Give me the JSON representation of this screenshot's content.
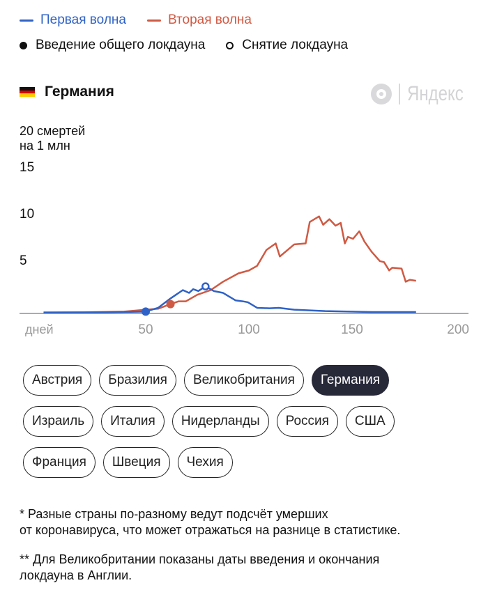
{
  "legend": {
    "first_wave": "Первая волна",
    "second_wave": "Вторая волна",
    "lockdown_start": "Введение общего локдауна",
    "lockdown_end": "Снятие локдауна"
  },
  "colors": {
    "first_wave": "#2f62c6",
    "second_wave": "#cf5a43",
    "selected": "#272838"
  },
  "country_title": "Германия",
  "logo_text": "Яндекс",
  "chart_data": {
    "type": "line",
    "title": "Германия",
    "ylabel": "20 смертей\nна 1 млн",
    "ylabel_lines": [
      "20 смертей",
      "на 1 млн"
    ],
    "xlabel": "дней",
    "xlim": [
      0,
      200
    ],
    "ylim": [
      0,
      20
    ],
    "x_ticks": [
      50,
      100,
      150,
      200
    ],
    "y_ticks": [
      5,
      10,
      15
    ],
    "series": [
      {
        "name": "Первая волна",
        "color": "#2f62c6",
        "points": [
          [
            0.5,
            0.1
          ],
          [
            30,
            0.12
          ],
          [
            50,
            0.2
          ],
          [
            56,
            0.6
          ],
          [
            62,
            1.6
          ],
          [
            68,
            2.5
          ],
          [
            71,
            2.2
          ],
          [
            73,
            2.6
          ],
          [
            75.5,
            2.4
          ],
          [
            79,
            2.9
          ],
          [
            83,
            2.4
          ],
          [
            87.5,
            2.2
          ],
          [
            93.5,
            1.4
          ],
          [
            97,
            1.3
          ],
          [
            99.5,
            1.2
          ],
          [
            104,
            0.6
          ],
          [
            110,
            0.55
          ],
          [
            114.5,
            0.6
          ],
          [
            122,
            0.4
          ],
          [
            137,
            0.25
          ],
          [
            159.5,
            0.15
          ],
          [
            181,
            0.15
          ]
        ],
        "lockdown_start": [
          50,
          0.2
        ],
        "lockdown_end": [
          79,
          2.9
        ]
      },
      {
        "name": "Вторая волна",
        "color": "#cf5a43",
        "points": [
          [
            0.5,
            0.1
          ],
          [
            20,
            0.12
          ],
          [
            39.5,
            0.2
          ],
          [
            50,
            0.4
          ],
          [
            56,
            0.5
          ],
          [
            62,
            1.0
          ],
          [
            66,
            1.3
          ],
          [
            69.5,
            1.3
          ],
          [
            75,
            2.0
          ],
          [
            81.5,
            2.5
          ],
          [
            87.5,
            3.4
          ],
          [
            95,
            4.3
          ],
          [
            100,
            4.6
          ],
          [
            104,
            5.1
          ],
          [
            108.5,
            6.8
          ],
          [
            113,
            7.5
          ],
          [
            115,
            6.1
          ],
          [
            122,
            7.4
          ],
          [
            127.5,
            7.5
          ],
          [
            129.5,
            9.8
          ],
          [
            134,
            10.4
          ],
          [
            136,
            9.5
          ],
          [
            139,
            10.1
          ],
          [
            142,
            9.4
          ],
          [
            144.5,
            9.7
          ],
          [
            146.5,
            7.5
          ],
          [
            148,
            8.2
          ],
          [
            150.5,
            8.0
          ],
          [
            153.5,
            8.8
          ],
          [
            156,
            7.7
          ],
          [
            159.5,
            6.6
          ],
          [
            163.5,
            5.6
          ],
          [
            165.5,
            5.5
          ],
          [
            168,
            4.6
          ],
          [
            169.5,
            4.9
          ],
          [
            174,
            4.8
          ],
          [
            176,
            3.4
          ],
          [
            178,
            3.6
          ],
          [
            181,
            3.5
          ]
        ],
        "lockdown_start": [
          62,
          1.0
        ]
      }
    ]
  },
  "countries": [
    [
      "Австрия",
      "Бразилия",
      "Великобритания",
      "Германия"
    ],
    [
      "Израиль",
      "Италия",
      "Нидерланды",
      "Россия",
      "США"
    ],
    [
      "Франция",
      "Швеция",
      "Чехия"
    ]
  ],
  "selected_country": "Германия",
  "notes": {
    "note1_line1": "* Разные страны по-разному ведут подсчёт умерших",
    "note1_line2": "от коронавируса, что может отражаться на разнице в статистике.",
    "note2_line1": "** Для Великобритании показаны даты введения и окончания",
    "note2_line2": "локдауна в Англии."
  }
}
